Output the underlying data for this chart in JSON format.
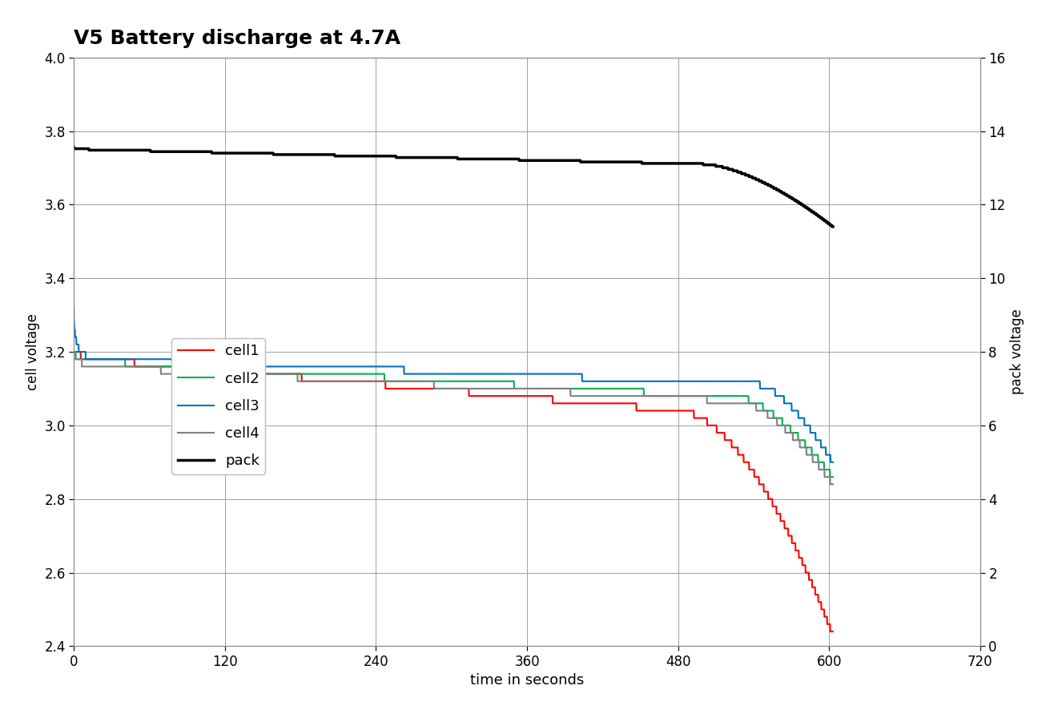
{
  "title": "V5 Battery discharge at 4.7A",
  "xlabel": "time in seconds",
  "ylabel_left": "cell voltage",
  "ylabel_right": "pack voltage",
  "xlim": [
    0,
    720
  ],
  "ylim_left": [
    2.4,
    4.0
  ],
  "ylim_right": [
    0,
    16
  ],
  "xticks": [
    0,
    120,
    240,
    360,
    480,
    600,
    720
  ],
  "yticks_left": [
    2.4,
    2.6,
    2.8,
    3.0,
    3.2,
    3.4,
    3.6,
    3.8,
    4.0
  ],
  "yticks_right": [
    0,
    2,
    4,
    6,
    8,
    10,
    12,
    14,
    16
  ],
  "colors": {
    "cell1": "#ff0000",
    "cell2": "#00b050",
    "cell3": "#0070c0",
    "cell4": "#808080",
    "pack": "#000000"
  },
  "linewidths": {
    "cell1": 1.5,
    "cell2": 1.5,
    "cell3": 1.5,
    "cell4": 1.5,
    "pack": 2.5
  },
  "legend_labels": [
    "cell1",
    "cell2",
    "cell3",
    "cell4",
    "pack"
  ],
  "background_color": "#ffffff",
  "grid_color": "#a0a0a0"
}
